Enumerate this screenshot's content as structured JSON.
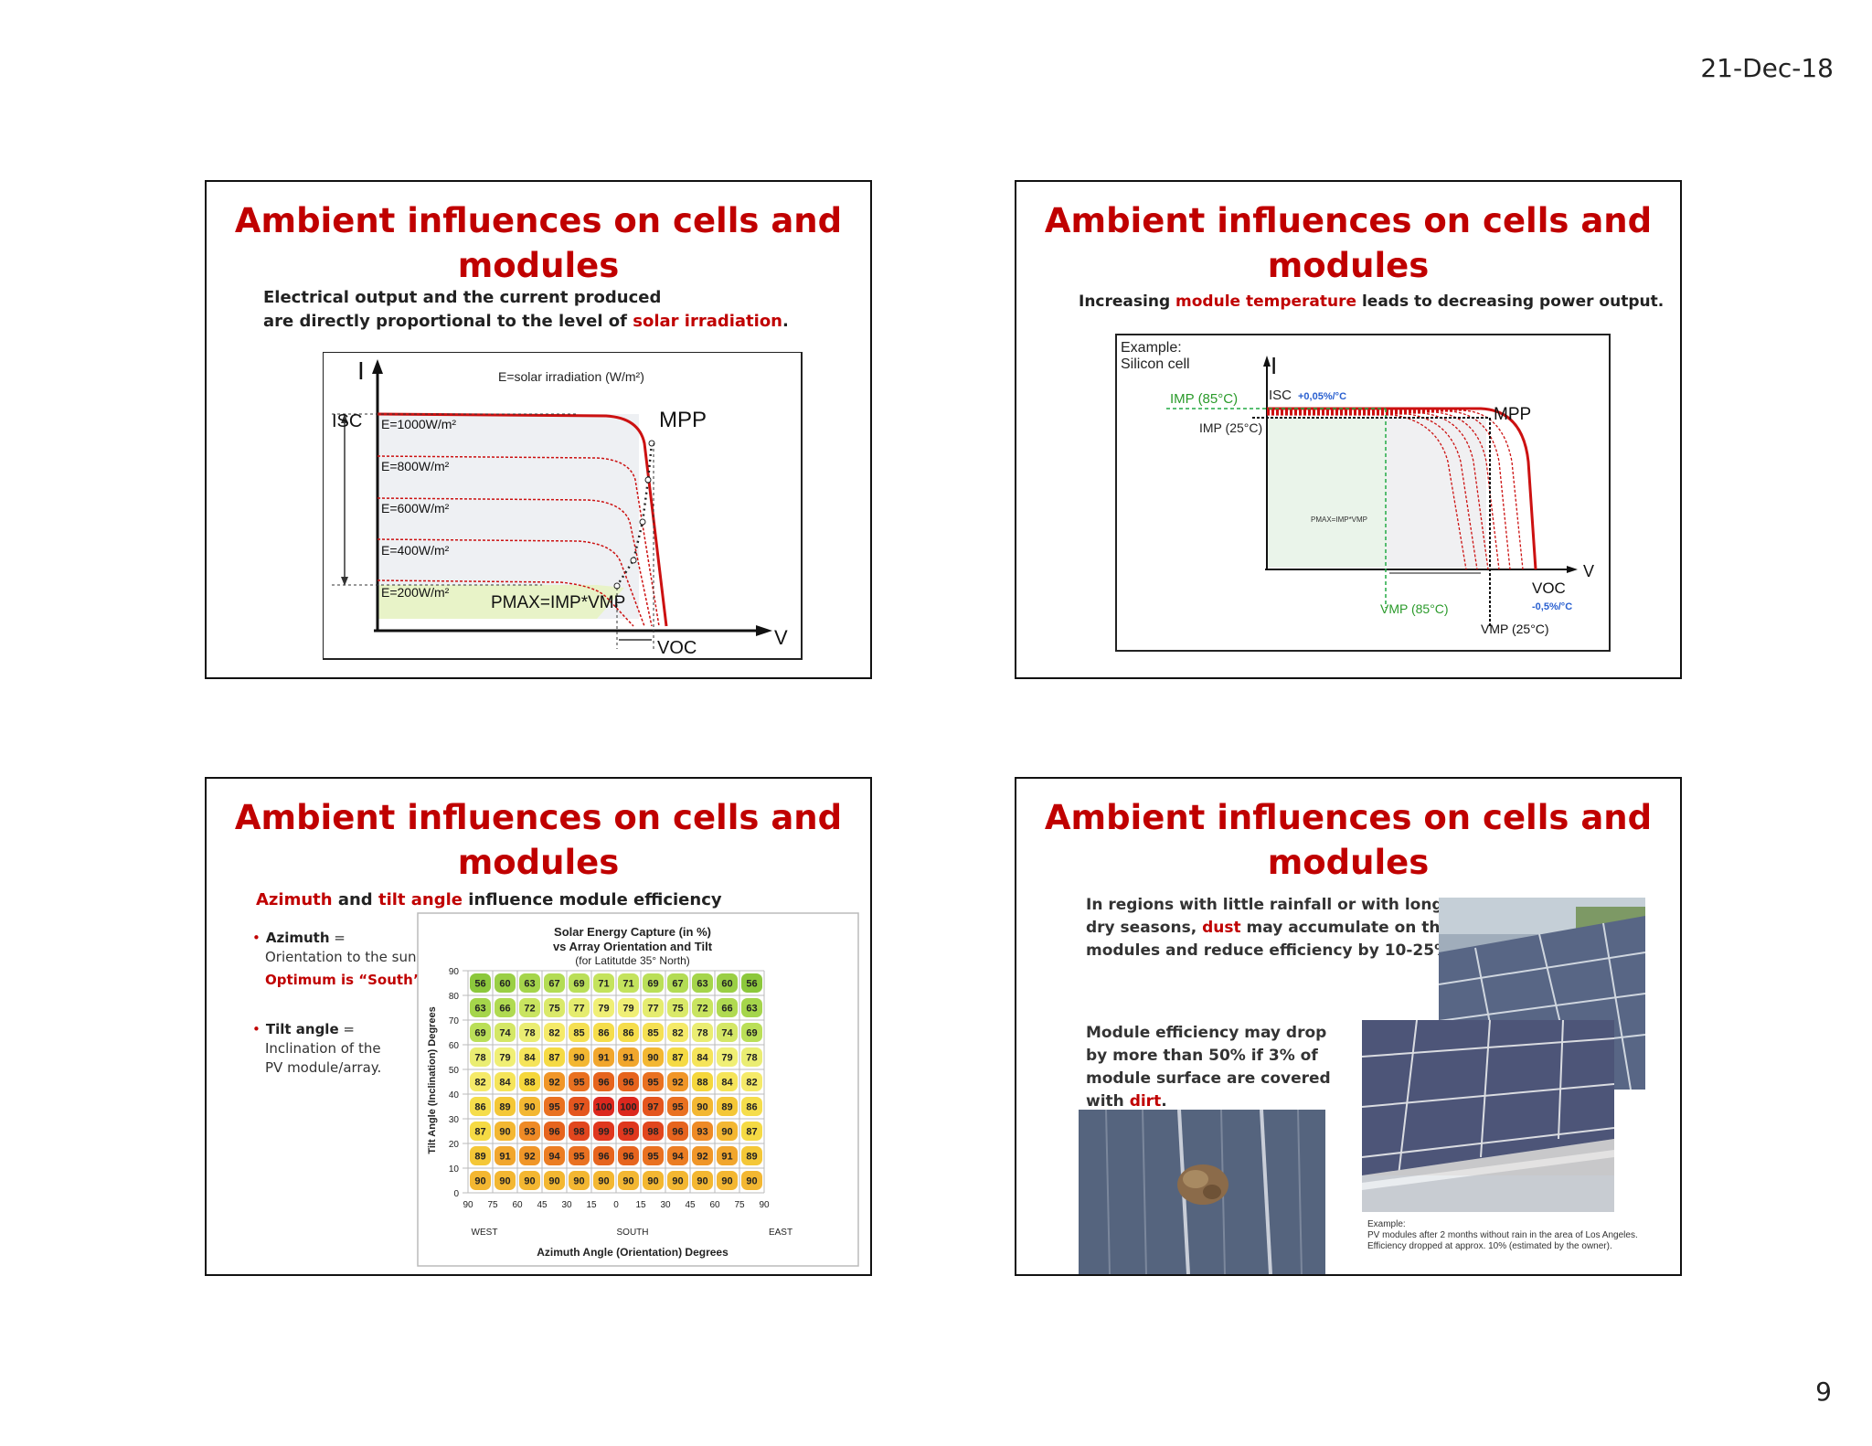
{
  "page": {
    "date": "21-Dec-18",
    "number": "9"
  },
  "slides": [
    {
      "title_line1": "Ambient influences on cells and",
      "title_line2": "modules",
      "subtitle_line1": "Electrical output and the current produced",
      "subtitle_line2_pre": "are directly proportional to the level of ",
      "subtitle_line2_red": "solar irradiation",
      "subtitle_line2_post": ".",
      "figure": {
        "axis_i": "I",
        "axis_v": "V",
        "legend": "E=solar irradiation (W/m²)",
        "isc": "ISC",
        "mpp": "MPP",
        "voc": "VOC",
        "pmax": "PMAX=IMP*VMP",
        "curves": [
          "E=1000W/m²",
          "E=800W/m²",
          "E=600W/m²",
          "E=400W/m²",
          "E=200W/m²"
        ]
      }
    },
    {
      "title_line1": "Ambient influences on cells and",
      "title_line2": "modules",
      "subtitle_pre": "Increasing ",
      "subtitle_red": "module temperature",
      "subtitle_post": " leads to decreasing power output.",
      "figure": {
        "example_line1": "Example:",
        "example_line2": "Silicon cell",
        "axis_i": "I",
        "axis_v": "V",
        "imp85": "IMP (85°C)",
        "imp25": "IMP (25°C)",
        "isc": "ISC",
        "isc_coef": "+0,05%/°C",
        "mpp": "MPP",
        "pmax": "PMAX=IMP*VMP",
        "voc": "VOC",
        "voc_coef": "-0,5%/°C",
        "vmp85": "VMP (85°C)",
        "vmp25": "VMP (25°C)"
      }
    },
    {
      "title_line1": "Ambient influences on cells and",
      "title_line2": "modules",
      "subtitle_red1": "Azimuth",
      "subtitle_mid": " and ",
      "subtitle_red2": "tilt angle",
      "subtitle_post": " influence module efficiency",
      "bullets": {
        "azimuth_label": "Azimuth",
        "azimuth_eq": " =",
        "azimuth_desc": "Orientation to the sun",
        "optimum": "Optimum is “South”.",
        "tilt_label": "Tilt angle",
        "tilt_eq": " =",
        "tilt_desc1": "Inclination of the",
        "tilt_desc2": "PV module/array."
      },
      "chart_data": {
        "type": "heatmap",
        "title": "Solar Energy Capture (in %)",
        "subtitle": "vs Array Orientation and Tilt",
        "subtitle2": "(for Latitutde 35° North)",
        "xlabel": "Azimuth Angle (Orientation) Degrees",
        "ylabel": "Tilt Angle (Inclination) Degrees",
        "x_ticks": [
          "90",
          "75",
          "60",
          "45",
          "30",
          "15",
          "0",
          "15",
          "30",
          "45",
          "60",
          "75",
          "90"
        ],
        "x_sublabels": {
          "west": "WEST",
          "south": "SOUTH",
          "east": "EAST"
        },
        "y_ticks": [
          "90",
          "80",
          "70",
          "60",
          "50",
          "40",
          "30",
          "20",
          "10",
          "0"
        ],
        "rows": [
          [
            56,
            60,
            63,
            67,
            69,
            71,
            71,
            69,
            67,
            63,
            60,
            56
          ],
          [
            63,
            66,
            72,
            75,
            77,
            79,
            79,
            77,
            75,
            72,
            66,
            63
          ],
          [
            69,
            74,
            78,
            82,
            85,
            86,
            86,
            85,
            82,
            78,
            74,
            69
          ],
          [
            78,
            79,
            84,
            87,
            90,
            91,
            91,
            90,
            87,
            84,
            79,
            78
          ],
          [
            82,
            84,
            88,
            92,
            95,
            96,
            96,
            95,
            92,
            88,
            84,
            82
          ],
          [
            86,
            89,
            90,
            95,
            97,
            100,
            100,
            97,
            95,
            90,
            89,
            86
          ],
          [
            87,
            90,
            93,
            96,
            98,
            99,
            99,
            98,
            96,
            93,
            90,
            87
          ],
          [
            89,
            91,
            92,
            94,
            95,
            96,
            96,
            95,
            94,
            92,
            91,
            89
          ],
          [
            90,
            90,
            90,
            90,
            90,
            90,
            90,
            90,
            90,
            90,
            90,
            90
          ]
        ]
      }
    },
    {
      "title_line1": "Ambient influences on cells and",
      "title_line2": "modules",
      "para1_line1": "In regions with little rainfall or with long",
      "para1_line2_pre": "dry seasons, ",
      "para1_line2_red": "dust",
      "para1_line2_post": " may accumulate on the",
      "para1_line3": "modules and reduce efficiency by 10-25%.",
      "para2_line1": "Module efficiency may drop",
      "para2_line2": "by more than 50% if 3% of",
      "para2_line3": "module surface are covered",
      "para2_line4_pre": "with ",
      "para2_line4_red": "dirt",
      "para2_line4_post": ".",
      "caption_line1": "Example:",
      "caption_line2": "PV modules after 2 months without rain in the area of Los Angeles.",
      "caption_line3": "Efficiency dropped at approx. 10% (estimated by the owner)."
    }
  ]
}
